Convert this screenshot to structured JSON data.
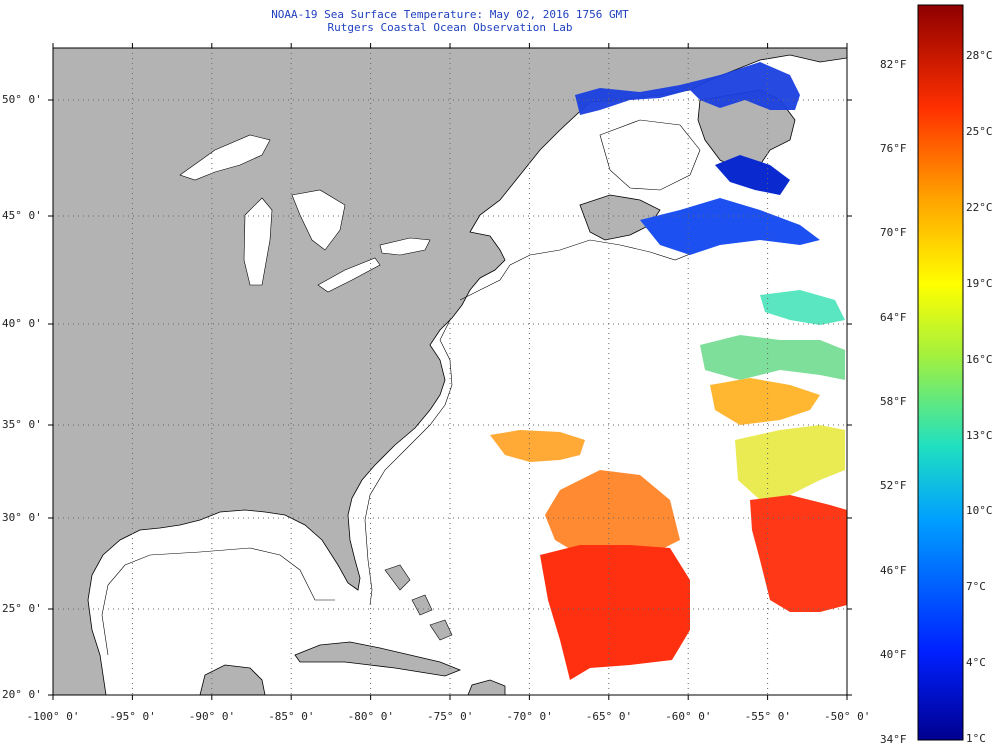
{
  "header": {
    "title": "NOAA-19 Sea Surface Temperature:  May 02, 2016 1756 GMT",
    "subtitle": "Rutgers Coastal Ocean Observation Lab"
  },
  "map": {
    "lat_labels": [
      "50° 0'",
      "45° 0'",
      "40° 0'",
      "35° 0'",
      "30° 0'",
      "25° 0'",
      "20° 0'"
    ],
    "lon_labels": [
      "-100° 0'",
      "-95° 0'",
      "-90° 0'",
      "-85° 0'",
      "-80° 0'",
      "-75° 0'",
      "-70° 0'",
      "-65° 0'",
      "-60° 0'",
      "-55° 0'",
      "-50° 0'"
    ],
    "lat_values": [
      50,
      45,
      40,
      35,
      30,
      25,
      20
    ],
    "lon_values": [
      -100,
      -95,
      -90,
      -85,
      -80,
      -75,
      -70,
      -65,
      -60,
      -55,
      -50
    ],
    "colors": {
      "land": "#b3b3b3",
      "water_nodata": "#ffffff",
      "gridlines": "#666666",
      "coastline": "#000000"
    }
  },
  "colorbar": {
    "fahrenheit_labels": [
      "82°F",
      "76°F",
      "70°F",
      "64°F",
      "58°F",
      "52°F",
      "46°F",
      "40°F",
      "34°F"
    ],
    "celsius_labels": [
      "28°C",
      "25°C",
      "22°C",
      "19°C",
      "16°C",
      "13°C",
      "10°C",
      "7°C",
      "4°C",
      "1°C"
    ]
  }
}
